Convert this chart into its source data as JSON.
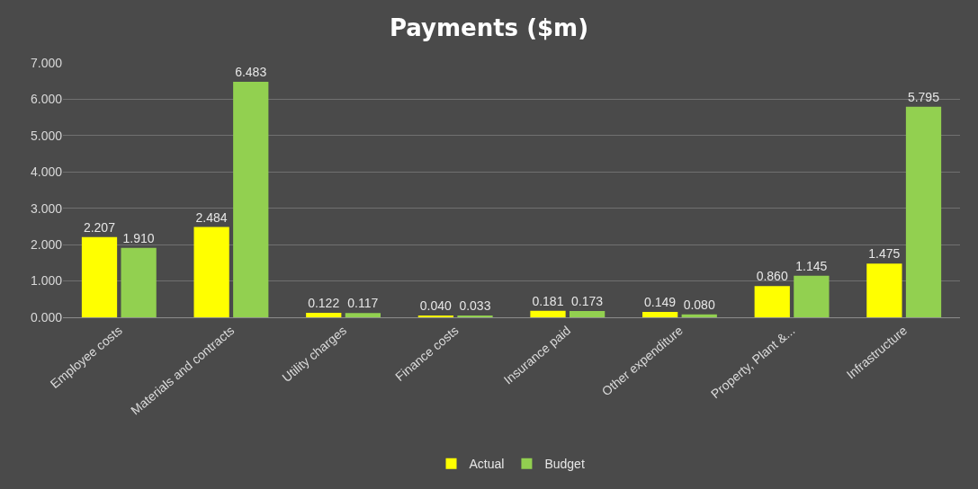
{
  "chart_data": {
    "type": "bar",
    "title": "Payments ($m)",
    "categories": [
      "Employee costs",
      "Materials and contracts",
      "Utility charges",
      "Finance costs",
      "Insurance paid",
      "Other expenditure",
      "Property, Plant &...",
      "Infrastructure"
    ],
    "series": [
      {
        "name": "Actual",
        "color": "#ffff00",
        "values": [
          2.207,
          2.484,
          0.122,
          0.04,
          0.181,
          0.149,
          0.86,
          1.475
        ],
        "value_labels": [
          "2.207",
          "2.484",
          "0.122",
          "0.040",
          "0.181",
          "0.149",
          "0.860",
          "1.475"
        ]
      },
      {
        "name": "Budget",
        "color": "#92d050",
        "values": [
          1.91,
          6.483,
          0.117,
          0.033,
          0.173,
          0.08,
          1.145,
          5.795
        ],
        "value_labels": [
          "1.910",
          "6.483",
          "0.117",
          "0.033",
          "0.173",
          "0.080",
          "1.145",
          "5.795"
        ]
      }
    ],
    "ylim": [
      0,
      7
    ],
    "yticks": [
      {
        "value": 0,
        "label": "0.000"
      },
      {
        "value": 1,
        "label": "1.000"
      },
      {
        "value": 2,
        "label": "2.000"
      },
      {
        "value": 3,
        "label": "3.000"
      },
      {
        "value": 4,
        "label": "4.000"
      },
      {
        "value": 5,
        "label": "5.000"
      },
      {
        "value": 6,
        "label": "6.000"
      },
      {
        "value": 7,
        "label": "7.000"
      }
    ],
    "grid": "y",
    "legend": "bottom"
  }
}
